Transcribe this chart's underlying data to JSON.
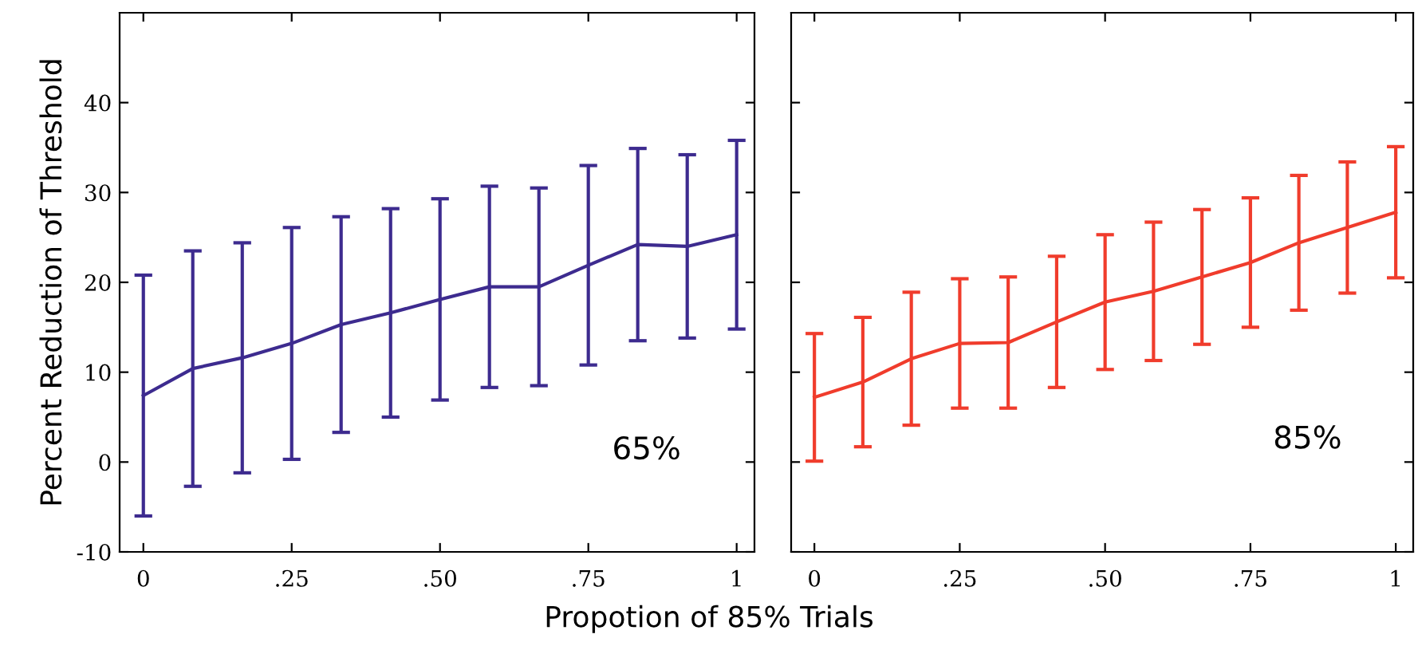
{
  "chart_data": [
    {
      "type": "line",
      "xlabel": "Propotion of 85% Trials",
      "ylabel": "Percent Reduction of Threshold",
      "x": [
        0,
        0.0833,
        0.1667,
        0.25,
        0.3333,
        0.4167,
        0.5,
        0.5833,
        0.6667,
        0.75,
        0.8333,
        0.9167,
        1
      ],
      "series": [
        {
          "color": "#3d2b8f",
          "values": [
            7.4,
            10.4,
            11.6,
            13.2,
            15.3,
            16.6,
            18.1,
            19.5,
            19.5,
            21.9,
            24.2,
            24.0,
            25.3
          ],
          "errors": [
            13.4,
            13.1,
            12.8,
            12.9,
            12.0,
            11.6,
            11.2,
            11.2,
            11.0,
            11.1,
            10.7,
            10.2,
            10.5
          ]
        }
      ],
      "xlim": [
        -0.04,
        1.03
      ],
      "xticks": [
        0,
        {
          "value": 0.25,
          "label": ".25"
        },
        {
          "value": 0.5,
          "label": ".50"
        },
        {
          "value": 0.75,
          "label": ".75"
        },
        1
      ],
      "ylim": [
        -10,
        50
      ],
      "yticks": [
        -10,
        0,
        10,
        20,
        30,
        40
      ],
      "grid": false,
      "marker": "none",
      "line_style": "solid",
      "annotations": [
        "65%"
      ]
    },
    {
      "type": "line",
      "x": [
        0,
        0.0833,
        0.1667,
        0.25,
        0.3333,
        0.4167,
        0.5,
        0.5833,
        0.6667,
        0.75,
        0.8333,
        0.9167,
        1
      ],
      "series": [
        {
          "color": "#f03c2c",
          "values": [
            7.2,
            8.9,
            11.5,
            13.2,
            13.3,
            15.6,
            17.8,
            19.0,
            20.6,
            22.2,
            24.4,
            26.1,
            27.8
          ],
          "errors": [
            7.1,
            7.2,
            7.4,
            7.2,
            7.3,
            7.3,
            7.5,
            7.7,
            7.5,
            7.2,
            7.5,
            7.3,
            7.3
          ]
        }
      ],
      "xlim": [
        -0.04,
        1.03
      ],
      "xticks": [
        0,
        {
          "value": 0.25,
          "label": ".25"
        },
        {
          "value": 0.5,
          "label": ".50"
        },
        {
          "value": 0.75,
          "label": ".75"
        },
        1
      ],
      "ylim": [
        -10,
        50
      ],
      "yticks": [
        -10,
        0,
        10,
        20,
        30,
        40
      ],
      "grid": false,
      "marker": "none",
      "line_style": "solid",
      "tick_labels": "x",
      "annotations": [
        "85%"
      ]
    }
  ]
}
